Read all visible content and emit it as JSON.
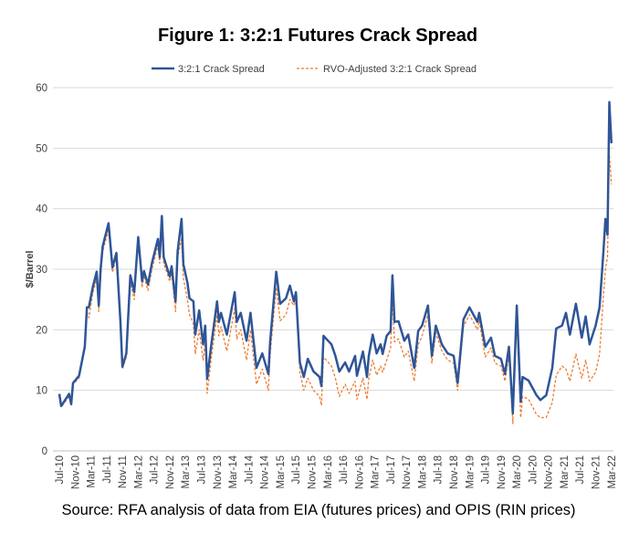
{
  "chart_data": {
    "type": "line",
    "title": "Figure 1: 3:2:1 Futures Crack Spread",
    "xlabel": "",
    "ylabel": "$/Barrel",
    "ylim": [
      0,
      60
    ],
    "yticks": [
      0,
      10,
      20,
      30,
      40,
      50,
      60
    ],
    "xticks": [
      "Jul-10",
      "Nov-10",
      "Mar-11",
      "Jul-11",
      "Nov-11",
      "Mar-12",
      "Jul-12",
      "Nov-12",
      "Mar-13",
      "Jul-13",
      "Nov-13",
      "Mar-14",
      "Jul-14",
      "Nov-14",
      "Mar-15",
      "Jul-15",
      "Nov-15",
      "Mar-16",
      "Jul-16",
      "Nov-16",
      "Mar-17",
      "Jul-17",
      "Nov-17",
      "Mar-18",
      "Jul-18",
      "Nov-18",
      "Mar-19",
      "Jul-19",
      "Nov-19",
      "Mar-20",
      "Jul-20",
      "Nov-20",
      "Mar-21",
      "Jul-21",
      "Nov-21",
      "Mar-22"
    ],
    "grid": "horizontal",
    "legend_position": "top",
    "source": "Source: RFA analysis of data from EIA (futures prices) and OPIS (RIN prices)",
    "x": [
      "2010-07-01",
      "2010-07-15",
      "2010-09-15",
      "2010-10-01",
      "2010-10-15",
      "2010-12-01",
      "2011-01-15",
      "2011-02-01",
      "2011-02-15",
      "2011-03-15",
      "2011-04-15",
      "2011-05-01",
      "2011-05-15",
      "2011-06-01",
      "2011-07-15",
      "2011-08-15",
      "2011-09-15",
      "2011-10-15",
      "2011-11-01",
      "2011-12-01",
      "2012-01-01",
      "2012-02-01",
      "2012-03-01",
      "2012-04-01",
      "2012-04-15",
      "2012-05-15",
      "2012-06-15",
      "2012-08-01",
      "2012-08-15",
      "2012-09-01",
      "2012-09-15",
      "2012-11-01",
      "2012-11-15",
      "2012-12-15",
      "2013-01-01",
      "2013-02-01",
      "2013-02-15",
      "2013-03-15",
      "2013-04-01",
      "2013-05-01",
      "2013-05-15",
      "2013-06-15",
      "2013-07-15",
      "2013-08-01",
      "2013-08-15",
      "2013-09-15",
      "2013-11-01",
      "2013-11-15",
      "2013-12-01",
      "2014-01-15",
      "2014-03-15",
      "2014-04-01",
      "2014-05-01",
      "2014-06-15",
      "2014-07-15",
      "2014-09-01",
      "2014-10-15",
      "2014-12-01",
      "2014-12-15",
      "2015-02-01",
      "2015-03-01",
      "2015-04-15",
      "2015-05-15",
      "2015-06-15",
      "2015-07-01",
      "2015-08-01",
      "2015-09-01",
      "2015-10-01",
      "2015-11-15",
      "2016-01-01",
      "2016-01-15",
      "2016-02-01",
      "2016-04-01",
      "2016-05-01",
      "2016-06-01",
      "2016-07-15",
      "2016-08-15",
      "2016-10-01",
      "2016-10-15",
      "2016-12-01",
      "2017-01-01",
      "2017-01-15",
      "2017-02-15",
      "2017-03-15",
      "2017-04-15",
      "2017-05-01",
      "2017-06-01",
      "2017-07-01",
      "2017-07-15",
      "2017-08-01",
      "2017-09-01",
      "2017-10-15",
      "2017-11-15",
      "2018-01-01",
      "2018-02-01",
      "2018-03-01",
      "2018-04-15",
      "2018-05-15",
      "2018-06-15",
      "2018-08-01",
      "2018-09-15",
      "2018-11-01",
      "2018-12-01",
      "2019-01-15",
      "2019-03-01",
      "2019-05-01",
      "2019-05-15",
      "2019-07-01",
      "2019-08-15",
      "2019-09-15",
      "2019-11-01",
      "2019-12-01",
      "2020-01-01",
      "2020-02-01",
      "2020-03-01",
      "2020-04-01",
      "2020-04-15",
      "2020-06-01",
      "2020-08-01",
      "2020-09-01",
      "2020-10-15",
      "2020-12-01",
      "2021-01-01",
      "2021-02-15",
      "2021-03-15",
      "2021-04-15",
      "2021-06-01",
      "2021-07-15",
      "2021-08-15",
      "2021-09-15",
      "2021-11-01",
      "2021-12-01",
      "2022-01-01",
      "2022-01-15",
      "2022-02-01",
      "2022-02-15",
      "2022-03-01"
    ],
    "series": [
      {
        "name": "3:2:1 Crack Spread",
        "color": "#2F5597",
        "style": "solid",
        "values": [
          9.4,
          7.4,
          9.4,
          7.7,
          11.2,
          12.4,
          17.2,
          23.7,
          23.7,
          27,
          29.6,
          24,
          30,
          33.8,
          37.6,
          30.3,
          32.7,
          21.7,
          13.9,
          16.1,
          29,
          26.2,
          35.3,
          28,
          29.7,
          27.5,
          31,
          35,
          32,
          38.8,
          32,
          28.8,
          30.5,
          24.7,
          33,
          38.3,
          30.8,
          27.8,
          25.2,
          24.7,
          19.2,
          23.2,
          17.6,
          20.7,
          11.9,
          17.2,
          24.7,
          21.3,
          22.8,
          19.2,
          26.2,
          21.3,
          22.8,
          18.2,
          22.8,
          13.7,
          16.1,
          12.7,
          18.2,
          29.6,
          24.3,
          25.2,
          27.3,
          24.7,
          26.2,
          14.6,
          12.2,
          15.2,
          13.1,
          12.2,
          10.7,
          19,
          17.6,
          15.7,
          13.1,
          14.6,
          13.1,
          15.7,
          12.4,
          16.4,
          12.2,
          15.7,
          19.2,
          16.1,
          17.6,
          16,
          19,
          19.8,
          29,
          21.3,
          21.4,
          18.2,
          19.2,
          13.7,
          19.8,
          20.7,
          24,
          15.7,
          20.7,
          17.6,
          16.1,
          15.7,
          11.2,
          21.7,
          23.7,
          21.3,
          22.8,
          17.2,
          18.7,
          15.7,
          15.2,
          12.7,
          17.2,
          6.2,
          24,
          8.1,
          12.2,
          11.6,
          9.2,
          8.4,
          9.2,
          13.7,
          20.2,
          20.7,
          22.8,
          19.2,
          24.3,
          18.7,
          22.2,
          17.6,
          20.7,
          23.7,
          33.3,
          38.3,
          35.7,
          57.6,
          50.8
        ]
      },
      {
        "name": "RVO-Adjusted 3:2:1 Crack Spread",
        "color": "#ED7D31",
        "style": "dashed",
        "values": [
          9.2,
          7.2,
          9,
          7.5,
          11,
          12,
          17,
          23,
          22,
          26,
          28.5,
          23,
          29,
          33,
          36.5,
          29.5,
          32,
          21,
          13.5,
          15.5,
          28,
          25,
          34.5,
          27,
          29,
          26.5,
          30,
          34,
          31,
          37.5,
          31,
          28,
          29.5,
          23,
          32,
          35,
          28.5,
          25,
          22.5,
          21,
          16,
          20,
          15,
          18,
          9.5,
          15,
          22.5,
          19,
          20.5,
          16.5,
          23.5,
          18.5,
          20,
          15,
          20,
          11,
          13.5,
          10,
          16,
          27,
          21.5,
          22.5,
          25,
          24,
          25,
          13,
          10,
          12,
          10,
          9,
          7.5,
          15.5,
          14,
          12,
          9,
          11,
          9.5,
          11.5,
          8.5,
          12,
          8.5,
          12,
          15,
          12.5,
          14,
          13,
          15,
          17,
          25.5,
          18,
          18.5,
          15.5,
          16.5,
          11.5,
          17.5,
          19,
          22.5,
          14.5,
          19.5,
          16.5,
          15,
          14.5,
          10,
          20.5,
          22.5,
          20,
          21.5,
          15.5,
          17,
          14.5,
          14,
          11.5,
          16,
          4.5,
          23,
          5.5,
          9,
          8.5,
          6,
          5.5,
          5.5,
          8,
          12.5,
          14,
          13.5,
          11.5,
          16,
          12,
          15,
          11.5,
          13,
          16,
          26,
          30,
          32,
          49,
          44
        ]
      }
    ]
  }
}
